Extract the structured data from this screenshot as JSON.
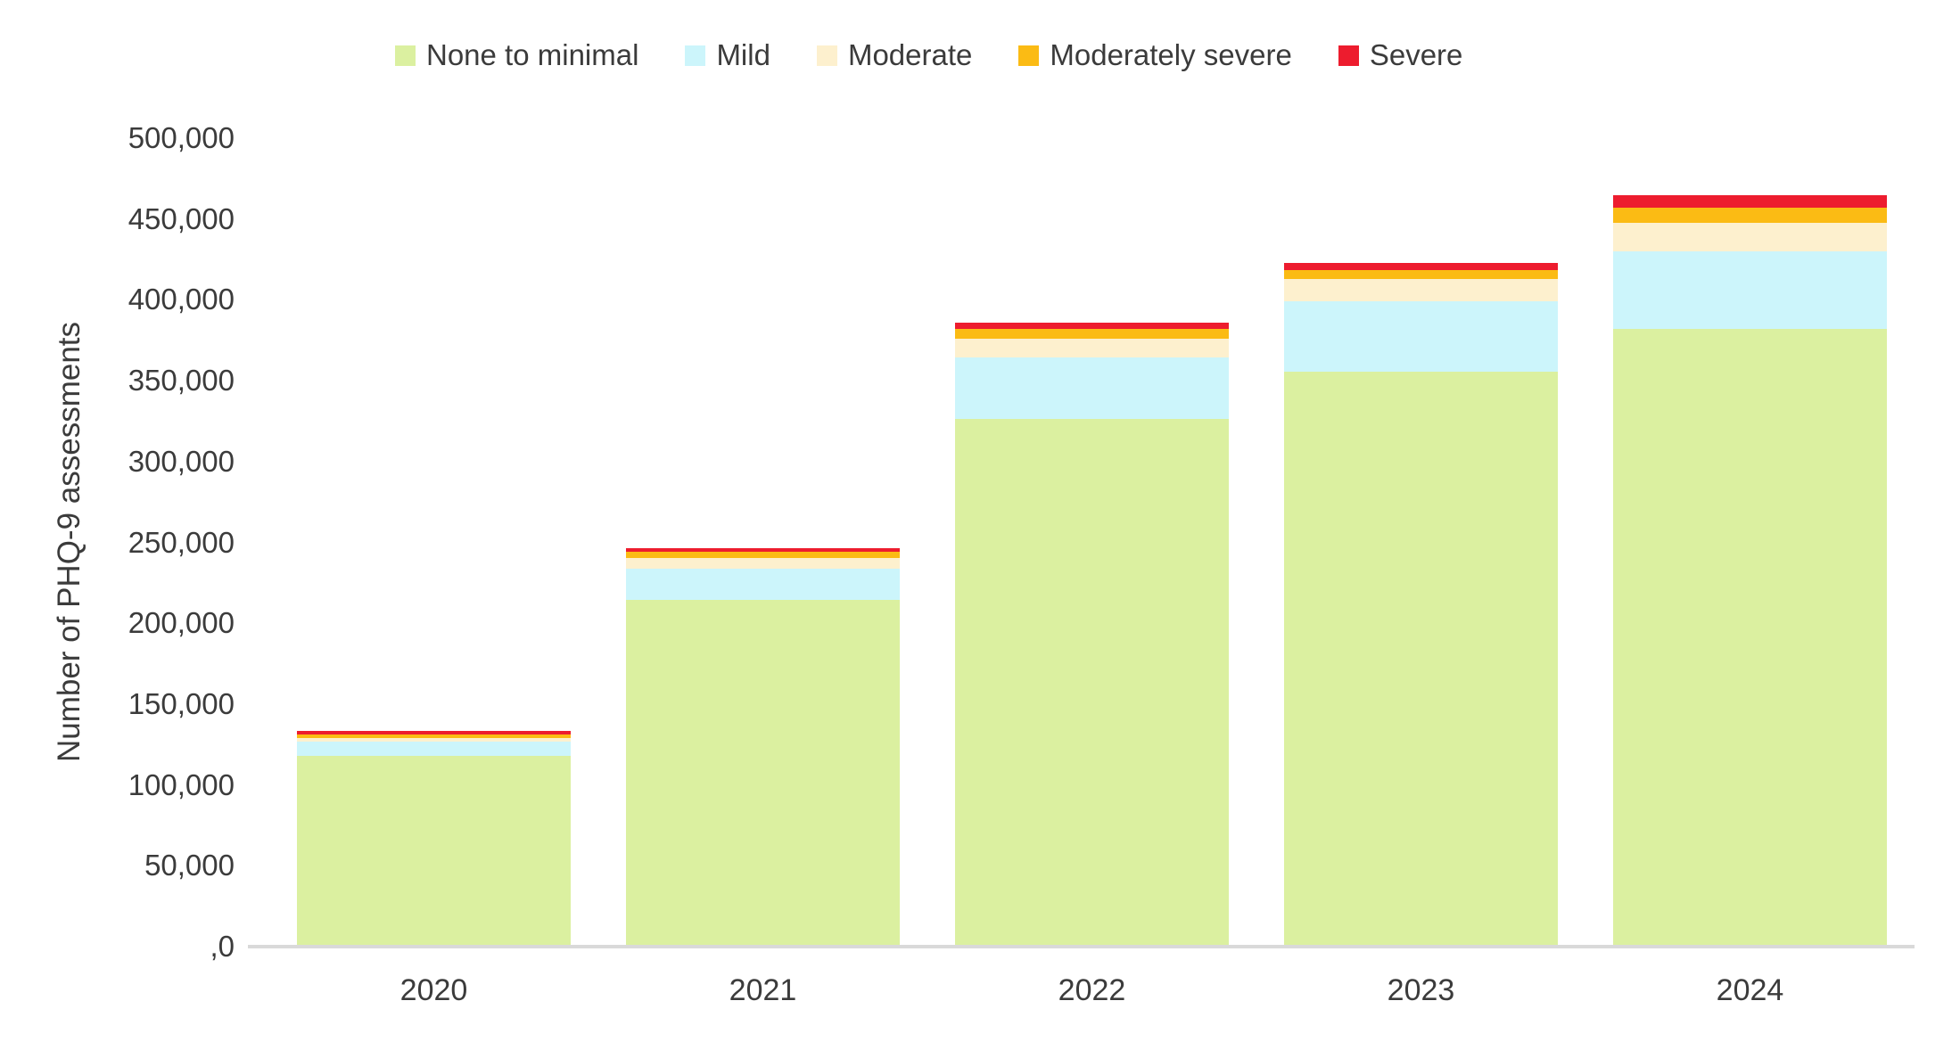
{
  "chart_data": {
    "type": "bar",
    "stacked": true,
    "title": "",
    "xlabel": "",
    "ylabel": "Number of PHQ-9 assessments",
    "categories": [
      "2020",
      "2021",
      "2022",
      "2023",
      "2024"
    ],
    "series": [
      {
        "name": "None to minimal",
        "color": "#DBF0A0",
        "values": [
          118000,
          214500,
          326500,
          355500,
          382000
        ]
      },
      {
        "name": "Mild",
        "color": "#CCF5FB",
        "values": [
          9000,
          19500,
          38000,
          43500,
          48000
        ]
      },
      {
        "name": "Moderate",
        "color": "#FDF0CE",
        "values": [
          2000,
          6500,
          11500,
          14000,
          17500
        ]
      },
      {
        "name": "Moderately severe",
        "color": "#FBBB14",
        "values": [
          2000,
          3500,
          6000,
          5500,
          9500
        ]
      },
      {
        "name": "Severe",
        "color": "#ED1C2E",
        "values": [
          2500,
          2500,
          4000,
          4500,
          8000
        ]
      }
    ],
    "totals": [
      133500,
      246500,
      386000,
      423000,
      465000
    ],
    "ylim": [
      0,
      500000
    ],
    "ytick_interval": 50000,
    "ytick_labels_bottom_to_top": [
      ",0",
      "50,000",
      "100,000",
      "150,000",
      "200,000",
      "250,000",
      "300,000",
      "350,000",
      "400,000",
      "450,000",
      "500,000"
    ],
    "grid": false,
    "legend_position": "top"
  },
  "style_colors": {
    "axis_line": "#D9D9D9",
    "label_text": "#3B3B3B"
  }
}
